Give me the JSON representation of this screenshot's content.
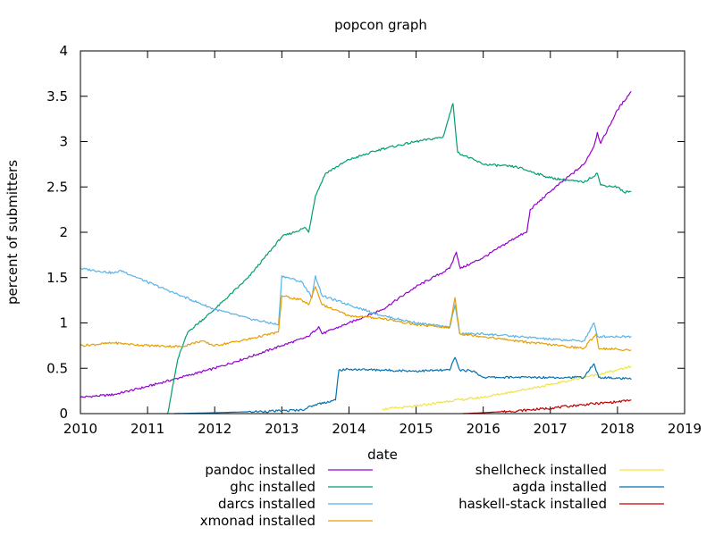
{
  "chart_data": {
    "type": "line",
    "title": "popcon graph",
    "xlabel": "date",
    "ylabel": "percent of submitters",
    "xlim": [
      2010,
      2019
    ],
    "ylim": [
      0,
      4
    ],
    "x_ticks": [
      "2010",
      "2011",
      "2012",
      "2013",
      "2014",
      "2015",
      "2016",
      "2017",
      "2018",
      "2019"
    ],
    "y_ticks": [
      "0",
      "0.5",
      "1",
      "1.5",
      "2",
      "2.5",
      "3",
      "3.5",
      "4"
    ],
    "grid": false,
    "legend_position": "bottom",
    "series": [
      {
        "name": "pandoc installed",
        "color": "#9400d3",
        "points": [
          [
            2010.0,
            0.18
          ],
          [
            2010.5,
            0.21
          ],
          [
            2011.0,
            0.3
          ],
          [
            2011.5,
            0.4
          ],
          [
            2012.0,
            0.5
          ],
          [
            2012.5,
            0.62
          ],
          [
            2013.0,
            0.75
          ],
          [
            2013.4,
            0.85
          ],
          [
            2013.55,
            0.96
          ],
          [
            2013.6,
            0.88
          ],
          [
            2014.0,
            1.0
          ],
          [
            2014.5,
            1.15
          ],
          [
            2015.0,
            1.4
          ],
          [
            2015.5,
            1.6
          ],
          [
            2015.6,
            1.78
          ],
          [
            2015.66,
            1.6
          ],
          [
            2016.0,
            1.72
          ],
          [
            2016.5,
            1.95
          ],
          [
            2016.65,
            2.0
          ],
          [
            2016.7,
            2.25
          ],
          [
            2017.0,
            2.45
          ],
          [
            2017.5,
            2.75
          ],
          [
            2017.65,
            2.95
          ],
          [
            2017.7,
            3.1
          ],
          [
            2017.75,
            2.98
          ],
          [
            2018.0,
            3.35
          ],
          [
            2018.2,
            3.55
          ]
        ]
      },
      {
        "name": "ghc installed",
        "color": "#009e73",
        "points": [
          [
            2011.3,
            0.0
          ],
          [
            2011.45,
            0.6
          ],
          [
            2011.6,
            0.9
          ],
          [
            2012.0,
            1.15
          ],
          [
            2012.5,
            1.5
          ],
          [
            2013.0,
            1.95
          ],
          [
            2013.35,
            2.05
          ],
          [
            2013.4,
            2.0
          ],
          [
            2013.5,
            2.4
          ],
          [
            2013.65,
            2.65
          ],
          [
            2014.0,
            2.8
          ],
          [
            2014.5,
            2.92
          ],
          [
            2015.0,
            3.0
          ],
          [
            2015.4,
            3.05
          ],
          [
            2015.55,
            3.42
          ],
          [
            2015.62,
            2.88
          ],
          [
            2016.0,
            2.75
          ],
          [
            2016.5,
            2.72
          ],
          [
            2017.0,
            2.6
          ],
          [
            2017.5,
            2.55
          ],
          [
            2017.7,
            2.65
          ],
          [
            2017.75,
            2.52
          ],
          [
            2018.0,
            2.5
          ],
          [
            2018.1,
            2.44
          ],
          [
            2018.2,
            2.45
          ]
        ]
      },
      {
        "name": "darcs installed",
        "color": "#56b4e9",
        "points": [
          [
            2010.0,
            1.6
          ],
          [
            2010.5,
            1.55
          ],
          [
            2010.6,
            1.58
          ],
          [
            2011.0,
            1.45
          ],
          [
            2011.5,
            1.3
          ],
          [
            2012.0,
            1.15
          ],
          [
            2012.5,
            1.05
          ],
          [
            2012.95,
            0.98
          ],
          [
            2013.0,
            1.52
          ],
          [
            2013.3,
            1.45
          ],
          [
            2013.45,
            1.28
          ],
          [
            2013.5,
            1.52
          ],
          [
            2013.6,
            1.3
          ],
          [
            2014.0,
            1.2
          ],
          [
            2014.5,
            1.08
          ],
          [
            2015.0,
            1.0
          ],
          [
            2015.5,
            0.95
          ],
          [
            2015.58,
            1.2
          ],
          [
            2015.65,
            0.88
          ],
          [
            2016.0,
            0.88
          ],
          [
            2016.5,
            0.85
          ],
          [
            2017.0,
            0.82
          ],
          [
            2017.5,
            0.8
          ],
          [
            2017.65,
            1.0
          ],
          [
            2017.7,
            0.85
          ],
          [
            2018.2,
            0.85
          ]
        ]
      },
      {
        "name": "xmonad installed",
        "color": "#e69f00",
        "points": [
          [
            2010.0,
            0.75
          ],
          [
            2010.5,
            0.78
          ],
          [
            2011.0,
            0.75
          ],
          [
            2011.5,
            0.74
          ],
          [
            2011.8,
            0.8
          ],
          [
            2012.0,
            0.75
          ],
          [
            2012.5,
            0.82
          ],
          [
            2012.95,
            0.9
          ],
          [
            2013.0,
            1.3
          ],
          [
            2013.3,
            1.25
          ],
          [
            2013.4,
            1.2
          ],
          [
            2013.5,
            1.4
          ],
          [
            2013.6,
            1.2
          ],
          [
            2014.0,
            1.08
          ],
          [
            2014.5,
            1.05
          ],
          [
            2015.0,
            0.98
          ],
          [
            2015.5,
            0.95
          ],
          [
            2015.58,
            1.28
          ],
          [
            2015.65,
            0.88
          ],
          [
            2016.0,
            0.85
          ],
          [
            2016.5,
            0.8
          ],
          [
            2017.0,
            0.76
          ],
          [
            2017.5,
            0.72
          ],
          [
            2017.68,
            0.88
          ],
          [
            2017.72,
            0.72
          ],
          [
            2018.0,
            0.71
          ],
          [
            2018.2,
            0.7
          ]
        ]
      },
      {
        "name": "shellcheck installed",
        "color": "#f0e442",
        "points": [
          [
            2014.5,
            0.05
          ],
          [
            2015.0,
            0.08
          ],
          [
            2015.5,
            0.14
          ],
          [
            2016.0,
            0.18
          ],
          [
            2016.5,
            0.25
          ],
          [
            2017.0,
            0.32
          ],
          [
            2017.5,
            0.4
          ],
          [
            2018.0,
            0.48
          ],
          [
            2018.2,
            0.52
          ]
        ]
      },
      {
        "name": "agda installed",
        "color": "#0072b2",
        "points": [
          [
            2011.4,
            0.0
          ],
          [
            2012.0,
            0.01
          ],
          [
            2012.5,
            0.02
          ],
          [
            2013.0,
            0.03
          ],
          [
            2013.3,
            0.04
          ],
          [
            2013.5,
            0.1
          ],
          [
            2013.8,
            0.15
          ],
          [
            2013.85,
            0.48
          ],
          [
            2014.0,
            0.49
          ],
          [
            2014.5,
            0.48
          ],
          [
            2015.0,
            0.47
          ],
          [
            2015.5,
            0.48
          ],
          [
            2015.58,
            0.62
          ],
          [
            2015.65,
            0.48
          ],
          [
            2015.85,
            0.47
          ],
          [
            2016.0,
            0.4
          ],
          [
            2016.5,
            0.4
          ],
          [
            2017.0,
            0.4
          ],
          [
            2017.5,
            0.4
          ],
          [
            2017.65,
            0.55
          ],
          [
            2017.72,
            0.4
          ],
          [
            2018.0,
            0.39
          ],
          [
            2018.2,
            0.38
          ]
        ]
      },
      {
        "name": "haskell-stack installed",
        "color": "#c00000",
        "points": [
          [
            2015.7,
            0.0
          ],
          [
            2016.0,
            0.01
          ],
          [
            2016.5,
            0.03
          ],
          [
            2017.0,
            0.06
          ],
          [
            2017.5,
            0.1
          ],
          [
            2018.0,
            0.13
          ],
          [
            2018.2,
            0.15
          ]
        ]
      }
    ]
  }
}
